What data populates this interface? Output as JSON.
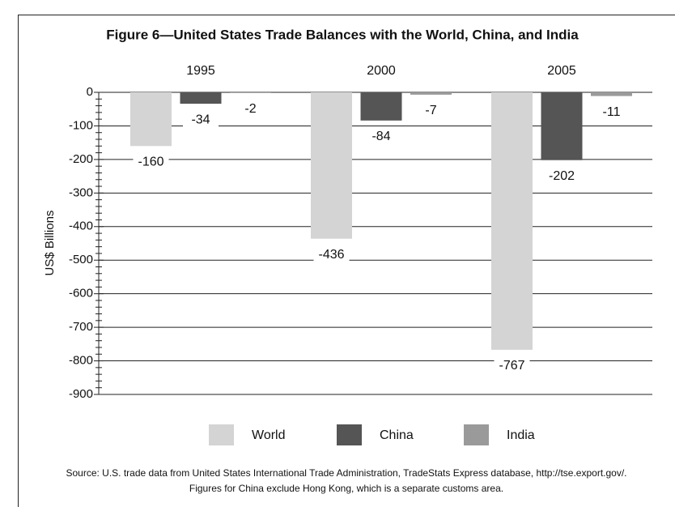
{
  "chart_data": {
    "type": "bar",
    "title": "Figure 6—United States Trade Balances with the World, China, and India",
    "y_label": "US$ Billions",
    "categories": [
      "1995",
      "2000",
      "2005"
    ],
    "series": [
      {
        "name": "World",
        "color": "#d4d4d4",
        "values": [
          -160,
          -436,
          -767
        ]
      },
      {
        "name": "China",
        "color": "#555555",
        "values": [
          -34,
          -84,
          -202
        ]
      },
      {
        "name": "India",
        "color": "#9a9a9a",
        "values": [
          -2,
          -7,
          -11
        ]
      }
    ],
    "ylim": [
      -900,
      0
    ],
    "yticks": [
      0,
      -100,
      -200,
      -300,
      -400,
      -500,
      -600,
      -700,
      -800,
      -900
    ],
    "grid": true,
    "legend": "bottom",
    "notes": [
      "Source: U.S. trade data from United States International Trade Administration, TradeStats Express database, http://tse.export.gov/.",
      "Figures for China exclude Hong Kong, which is a separate customs area."
    ]
  }
}
